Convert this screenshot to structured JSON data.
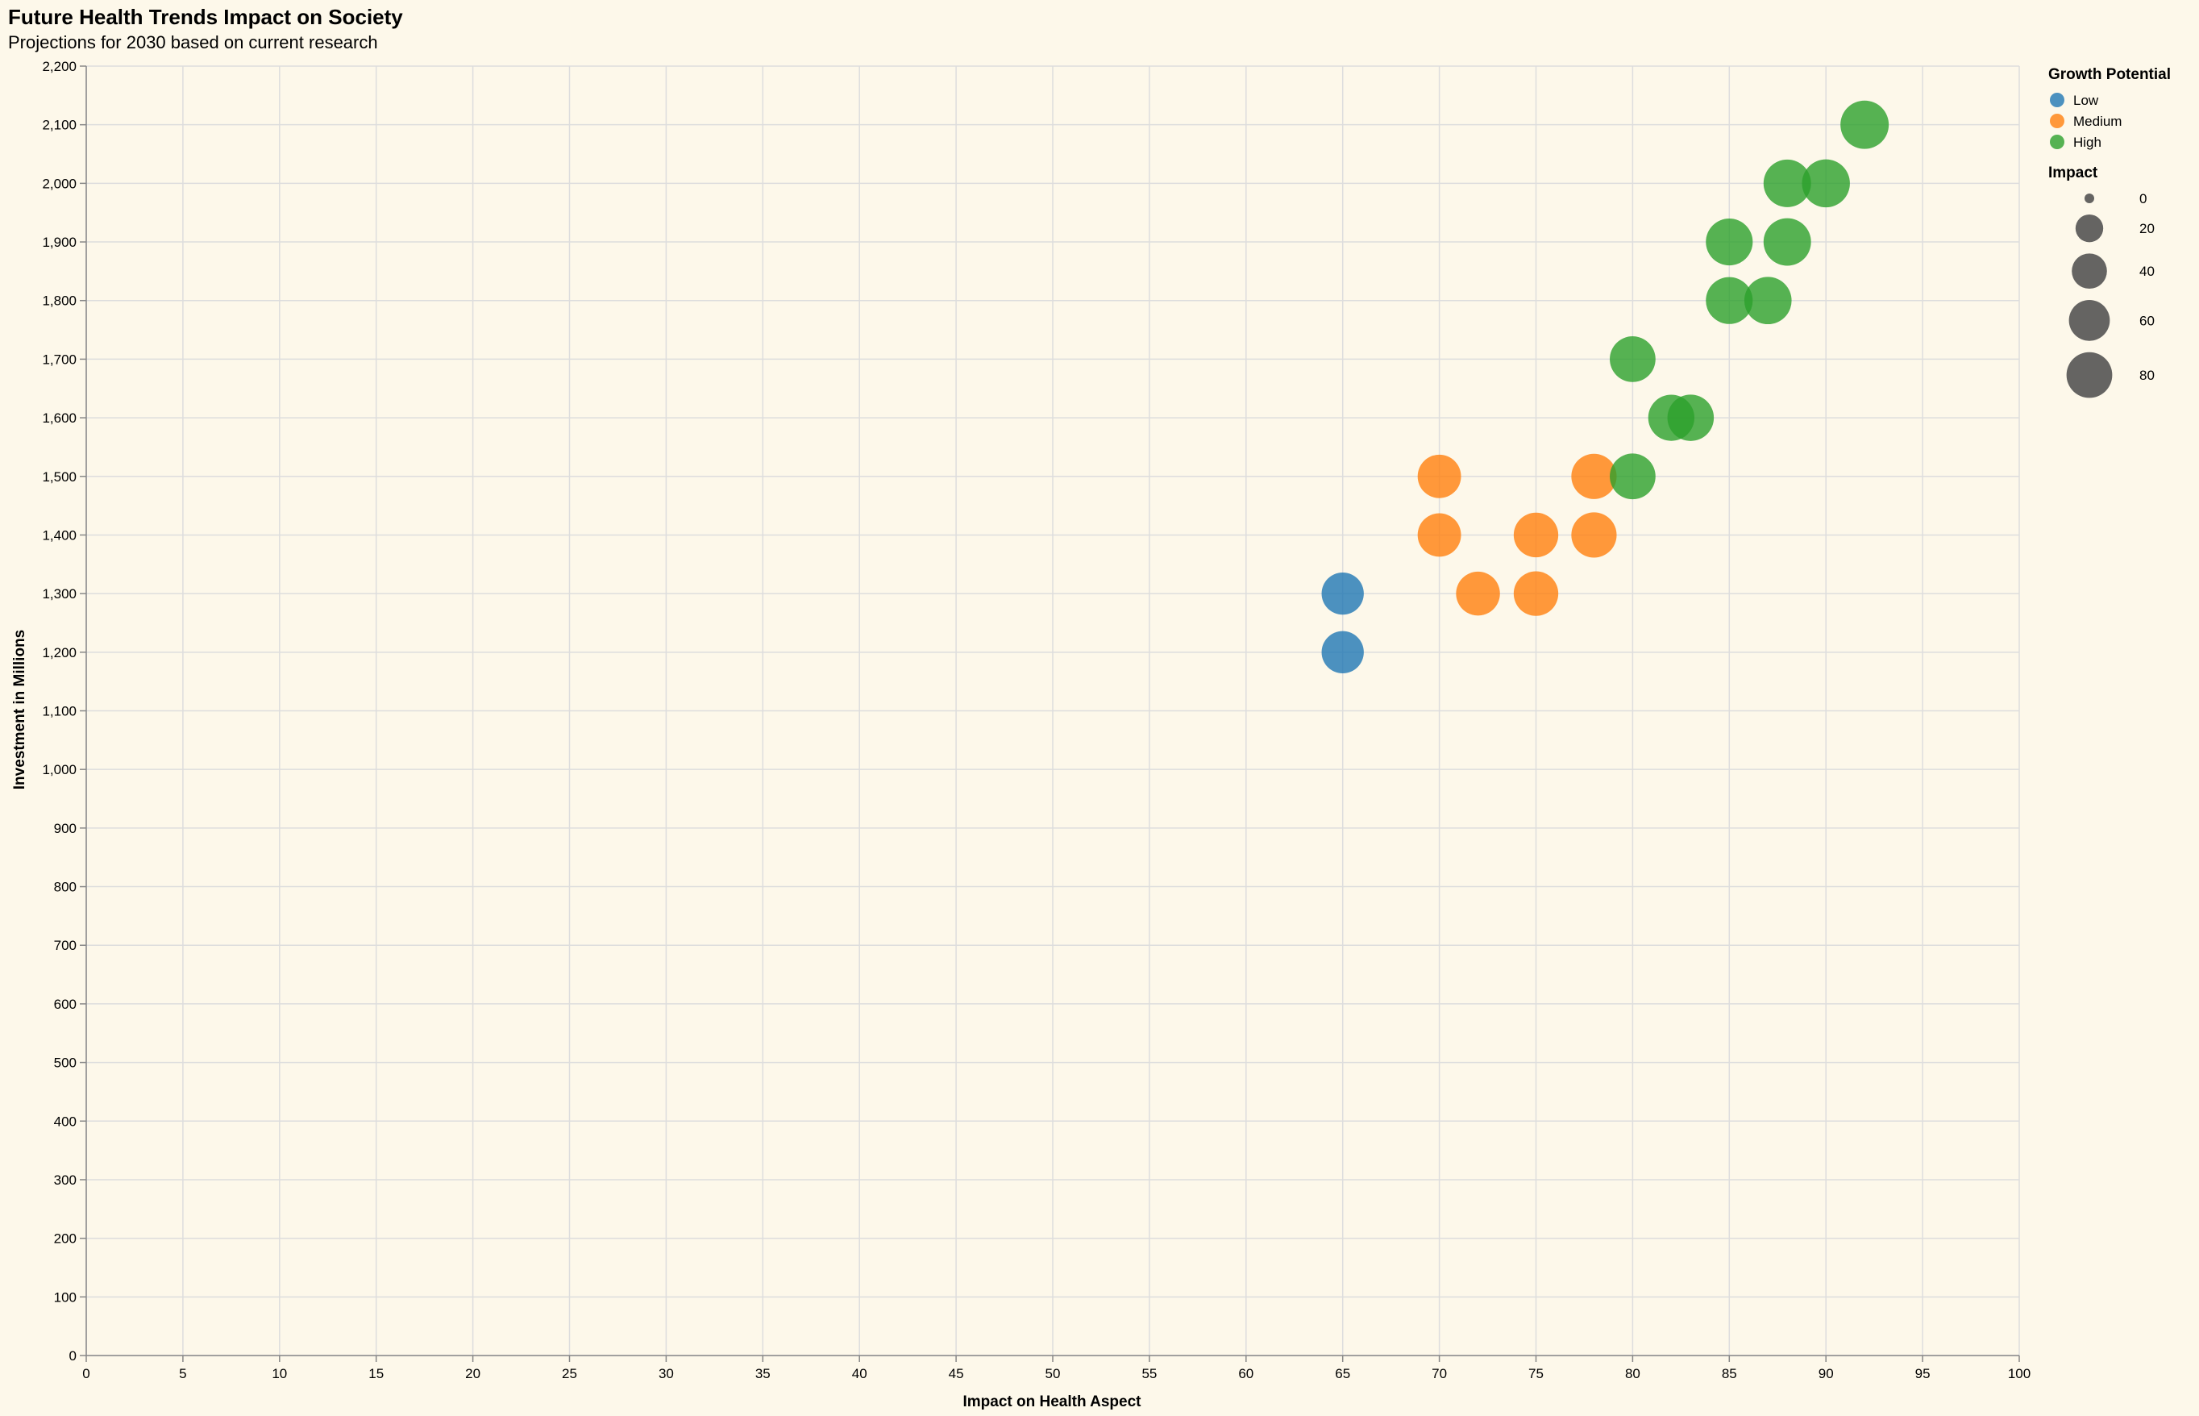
{
  "chart_data": {
    "type": "scatter",
    "title": "Future Health Trends Impact on Society",
    "subtitle": "Projections for 2030 based on current research",
    "xlabel": "Impact on Health Aspect",
    "ylabel": "Investment in Millions",
    "xlim": [
      0,
      100
    ],
    "ylim": [
      0,
      2200
    ],
    "x_ticks": [
      0,
      5,
      10,
      15,
      20,
      25,
      30,
      35,
      40,
      45,
      50,
      55,
      60,
      65,
      70,
      75,
      80,
      85,
      90,
      95,
      100
    ],
    "y_ticks": [
      0,
      100,
      200,
      300,
      400,
      500,
      600,
      700,
      800,
      900,
      1000,
      1100,
      1200,
      1300,
      1400,
      1500,
      1600,
      1700,
      1800,
      1900,
      2000,
      2100,
      2200
    ],
    "y_tick_labels": [
      "0",
      "100",
      "200",
      "300",
      "400",
      "500",
      "600",
      "700",
      "800",
      "900",
      "1,000",
      "1,100",
      "1,200",
      "1,300",
      "1,400",
      "1,500",
      "1,600",
      "1,700",
      "1,800",
      "1,900",
      "2,000",
      "2,100",
      "2,200"
    ],
    "grid": true,
    "color_legend": {
      "title": "Growth Potential",
      "position": "top-right",
      "entries": [
        {
          "label": "Low",
          "color": "#1f77b4"
        },
        {
          "label": "Medium",
          "color": "#ff7f0e"
        },
        {
          "label": "High",
          "color": "#2ca02c"
        }
      ]
    },
    "size_legend": {
      "title": "Impact",
      "values": [
        0,
        20,
        40,
        60,
        80
      ],
      "labels": [
        "0",
        "20",
        "40",
        "60",
        "80"
      ]
    },
    "points": [
      {
        "x": 65,
        "y": 1300,
        "size": 65,
        "group": "Low"
      },
      {
        "x": 65,
        "y": 1200,
        "size": 65,
        "group": "Low"
      },
      {
        "x": 70,
        "y": 1500,
        "size": 70,
        "group": "Medium"
      },
      {
        "x": 70,
        "y": 1400,
        "size": 70,
        "group": "Medium"
      },
      {
        "x": 72,
        "y": 1300,
        "size": 72,
        "group": "Medium"
      },
      {
        "x": 75,
        "y": 1400,
        "size": 75,
        "group": "Medium"
      },
      {
        "x": 75,
        "y": 1300,
        "size": 75,
        "group": "Medium"
      },
      {
        "x": 78,
        "y": 1500,
        "size": 78,
        "group": "Medium"
      },
      {
        "x": 78,
        "y": 1400,
        "size": 78,
        "group": "Medium"
      },
      {
        "x": 80,
        "y": 1700,
        "size": 80,
        "group": "High"
      },
      {
        "x": 80,
        "y": 1500,
        "size": 80,
        "group": "High"
      },
      {
        "x": 82,
        "y": 1600,
        "size": 82,
        "group": "High"
      },
      {
        "x": 83,
        "y": 1600,
        "size": 83,
        "group": "High"
      },
      {
        "x": 85,
        "y": 1900,
        "size": 85,
        "group": "High"
      },
      {
        "x": 85,
        "y": 1800,
        "size": 85,
        "group": "High"
      },
      {
        "x": 87,
        "y": 1800,
        "size": 87,
        "group": "High"
      },
      {
        "x": 88,
        "y": 2000,
        "size": 88,
        "group": "High"
      },
      {
        "x": 88,
        "y": 1900,
        "size": 88,
        "group": "High"
      },
      {
        "x": 90,
        "y": 2000,
        "size": 90,
        "group": "High"
      },
      {
        "x": 92,
        "y": 2100,
        "size": 92,
        "group": "High"
      }
    ]
  }
}
